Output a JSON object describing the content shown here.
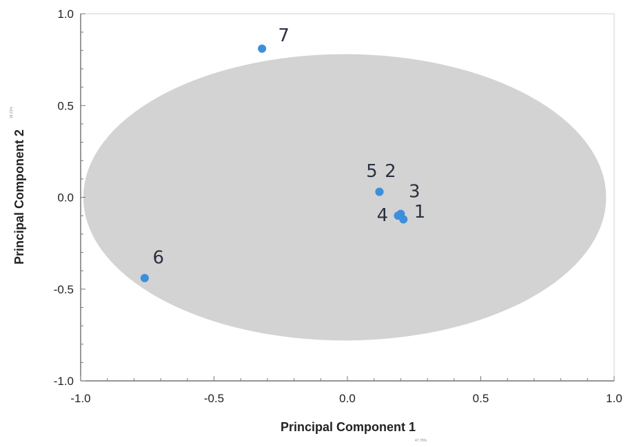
{
  "chart_data": {
    "type": "scatter",
    "title": "",
    "xlabel": "Principal Component 1",
    "ylabel": "Principal Component 2",
    "xlabel_note": "47.76%",
    "ylabel_note": "18.21%",
    "xlim": [
      -1.0,
      1.0
    ],
    "ylim": [
      -1.0,
      1.0
    ],
    "x_ticks": [
      "-1.0",
      "-0.5",
      "0.0",
      "0.5",
      "1.0"
    ],
    "y_ticks": [
      "1.0",
      "0.5",
      "0.0",
      "-0.5",
      "-1.0"
    ],
    "x_tick_values": [
      -1.0,
      -0.5,
      0.0,
      0.5,
      1.0
    ],
    "y_tick_values": [
      1.0,
      0.5,
      0.0,
      -0.5,
      -1.0
    ],
    "grid": false,
    "ellipse": {
      "center": [
        -0.01,
        0.0
      ],
      "radii": [
        0.98,
        0.78
      ],
      "color": "#d3d3d3"
    },
    "point_color": "#3d8fdb",
    "points": [
      {
        "label": "1",
        "x": 0.21,
        "y": -0.12
      },
      {
        "label": "2",
        "x": 0.12,
        "y": 0.03
      },
      {
        "label": "3",
        "x": 0.2,
        "y": -0.09
      },
      {
        "label": "4",
        "x": 0.19,
        "y": -0.1
      },
      {
        "label": "5",
        "x": 0.12,
        "y": 0.03
      },
      {
        "label": "6",
        "x": -0.76,
        "y": -0.44
      },
      {
        "label": "7",
        "x": -0.32,
        "y": 0.81
      }
    ],
    "point_labels": [
      {
        "text": "7",
        "x": -0.26,
        "y": 0.85
      },
      {
        "text": "5",
        "x": 0.07,
        "y": 0.11
      },
      {
        "text": "2",
        "x": 0.14,
        "y": 0.11
      },
      {
        "text": "3",
        "x": 0.23,
        "y": 0.0
      },
      {
        "text": "4",
        "x": 0.11,
        "y": -0.13
      },
      {
        "text": "1",
        "x": 0.25,
        "y": -0.11
      },
      {
        "text": "6",
        "x": -0.73,
        "y": -0.36
      }
    ]
  }
}
